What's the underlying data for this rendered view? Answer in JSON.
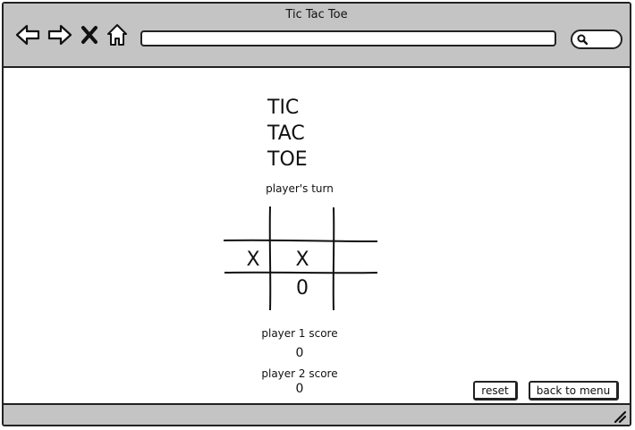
{
  "window": {
    "title": "Tic Tac Toe"
  },
  "browser": {
    "address_value": "",
    "icons": {
      "back": "arrow-left-icon",
      "forward": "arrow-right-icon",
      "stop": "close-icon",
      "home": "home-icon",
      "search": "search-icon"
    }
  },
  "game": {
    "title_lines": [
      "TIC",
      "TAC",
      "TOE"
    ],
    "turn_label": "player's turn",
    "board": [
      [
        "",
        "",
        ""
      ],
      [
        "X",
        "X",
        ""
      ],
      [
        "",
        "0",
        ""
      ]
    ],
    "player1_label": "player 1 score",
    "player1_score": "0",
    "player2_label": "player 2 score",
    "player2_score": "0"
  },
  "buttons": {
    "reset": "reset",
    "back_to_menu": "back to menu"
  },
  "colors": {
    "chrome": "#c4c4c4",
    "ink": "#222222",
    "background": "#ffffff"
  }
}
